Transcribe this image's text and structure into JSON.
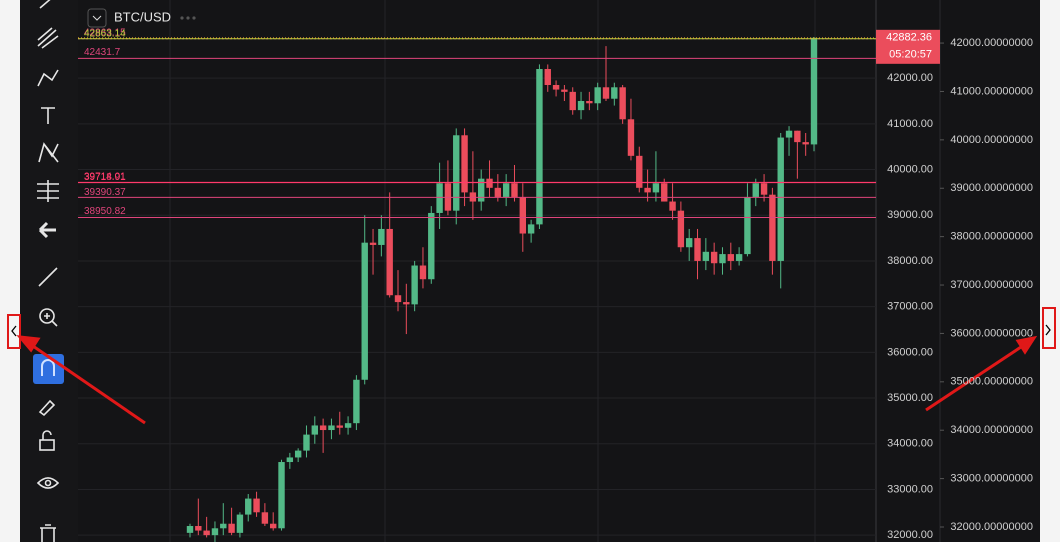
{
  "symbol": "BTC/USD",
  "chart_data": {
    "type": "candlestick",
    "ylim": [
      31850,
      43710
    ],
    "yticks": [
      {
        "value": 42000,
        "label": "42000.00"
      },
      {
        "value": 41000,
        "label": "41000.00"
      },
      {
        "value": 40000,
        "label": "40000.00"
      },
      {
        "value": 39000,
        "label": "39000.00"
      },
      {
        "value": 38000,
        "label": "38000.00"
      },
      {
        "value": 37000,
        "label": "37000.00"
      },
      {
        "value": 36000,
        "label": "36000.00"
      },
      {
        "value": 35000,
        "label": "35000.00"
      },
      {
        "value": 34000,
        "label": "34000.00"
      },
      {
        "value": 33000,
        "label": "33000.00"
      },
      {
        "value": 32000,
        "label": "32000.00"
      }
    ],
    "y2lim": [
      31690,
      42890
    ],
    "y2ticks": [
      {
        "value": 42000,
        "label": "42000.00000000"
      },
      {
        "value": 41000,
        "label": "41000.00000000"
      },
      {
        "value": 40000,
        "label": "40000.00000000"
      },
      {
        "value": 39000,
        "label": "39000.00000000"
      },
      {
        "value": 38000,
        "label": "38000.00000000"
      },
      {
        "value": 37000,
        "label": "37000.00000000"
      },
      {
        "value": 36000,
        "label": "36000.00000000"
      },
      {
        "value": 35000,
        "label": "35000.00000000"
      },
      {
        "value": 34000,
        "label": "34000.00000000"
      },
      {
        "value": 33000,
        "label": "33000.00000000"
      },
      {
        "value": 32000,
        "label": "32000.00000000"
      }
    ],
    "up_color": "#53b987",
    "down_color": "#eb4d5c",
    "open": [
      32050,
      32200,
      32100,
      32000,
      32150,
      32250,
      32050,
      32450,
      32800,
      32500,
      32250,
      32150,
      33600,
      33700,
      33850,
      34200,
      34400,
      34300,
      34400,
      34350,
      34450,
      35400,
      38400,
      38350,
      38700,
      37250,
      37100,
      37050,
      37900,
      37600,
      39050,
      39700,
      39100,
      40750,
      39500,
      39300,
      39800,
      39600,
      39400,
      39700,
      39400,
      38600,
      38800,
      42200,
      41850,
      41750,
      41700,
      41300,
      41500,
      41450,
      41800,
      41550,
      41800,
      41100,
      40300,
      39600,
      39500,
      39700,
      39300,
      39100,
      38300,
      38500,
      38000,
      38200,
      37950,
      38150,
      38000,
      38150,
      39400,
      39700,
      39450,
      38000,
      40700,
      40850,
      40600,
      40550
    ],
    "high": [
      32250,
      32800,
      32400,
      32300,
      32700,
      32600,
      32500,
      32900,
      32950,
      32700,
      32500,
      33650,
      33800,
      33900,
      34400,
      34600,
      34550,
      34550,
      34700,
      34600,
      35500,
      39000,
      38700,
      39000,
      39500,
      37800,
      37500,
      38000,
      38300,
      39200,
      40150,
      40200,
      40900,
      40900,
      40400,
      40000,
      40200,
      39900,
      39900,
      40100,
      39700,
      38900,
      42300,
      42300,
      41950,
      41850,
      41800,
      41700,
      41700,
      41900,
      42700,
      41900,
      41850,
      41550,
      40500,
      40000,
      40400,
      39800,
      39700,
      39300,
      38700,
      38700,
      38500,
      38400,
      38300,
      38400,
      38300,
      39700,
      39800,
      39900,
      39600,
      40800,
      40950,
      40850,
      40800,
      42900
    ],
    "low": [
      31950,
      32000,
      31950,
      31850,
      32000,
      32000,
      31950,
      32300,
      32400,
      32200,
      32100,
      32100,
      33450,
      33600,
      33700,
      34000,
      33800,
      34100,
      34200,
      34200,
      34300,
      35300,
      37700,
      38100,
      37200,
      36900,
      36400,
      36900,
      37400,
      37500,
      38700,
      39000,
      38800,
      39200,
      38900,
      39100,
      39400,
      39300,
      39200,
      39300,
      38200,
      38400,
      38700,
      41700,
      41600,
      41500,
      41200,
      41100,
      41300,
      41300,
      41500,
      41400,
      41000,
      40200,
      39500,
      39300,
      39300,
      39300,
      38900,
      38200,
      38000,
      37600,
      37800,
      37700,
      37700,
      37800,
      37900,
      38100,
      39200,
      39300,
      37700,
      37400,
      40300,
      39800,
      40300,
      40400
    ],
    "close": [
      32200,
      32100,
      32000,
      32150,
      32250,
      32050,
      32450,
      32800,
      32500,
      32250,
      32150,
      33600,
      33700,
      33850,
      34200,
      34400,
      34300,
      34400,
      34350,
      34450,
      35400,
      38400,
      38350,
      38700,
      37250,
      37100,
      37050,
      37900,
      37600,
      39050,
      39700,
      39100,
      40750,
      39500,
      39300,
      39800,
      39600,
      39400,
      39700,
      39400,
      38600,
      38800,
      42200,
      41850,
      41750,
      41700,
      41300,
      41500,
      41450,
      41800,
      41550,
      41800,
      41100,
      40300,
      39600,
      39500,
      39700,
      39300,
      39100,
      38300,
      38500,
      38000,
      38200,
      37950,
      38150,
      38000,
      38150,
      39400,
      39700,
      39450,
      38000,
      40700,
      40850,
      40600,
      40550,
      42882.36
    ],
    "price_lines": [
      {
        "value": 42863.15,
        "color": "#e0457b"
      },
      {
        "value": 42863.14,
        "color": "#b6d13a"
      },
      {
        "value": 42431.7,
        "color": "#e0457b"
      },
      {
        "value": 39718.91,
        "color": "#ff3b6b"
      },
      {
        "value": 39714.01,
        "color": "#ff3b6b"
      },
      {
        "value": 39390.37,
        "color": "#e0457b"
      },
      {
        "value": 38950.82,
        "color": "#e0457b"
      }
    ],
    "current_price": 42882.36,
    "countdown": "05:20:57"
  }
}
